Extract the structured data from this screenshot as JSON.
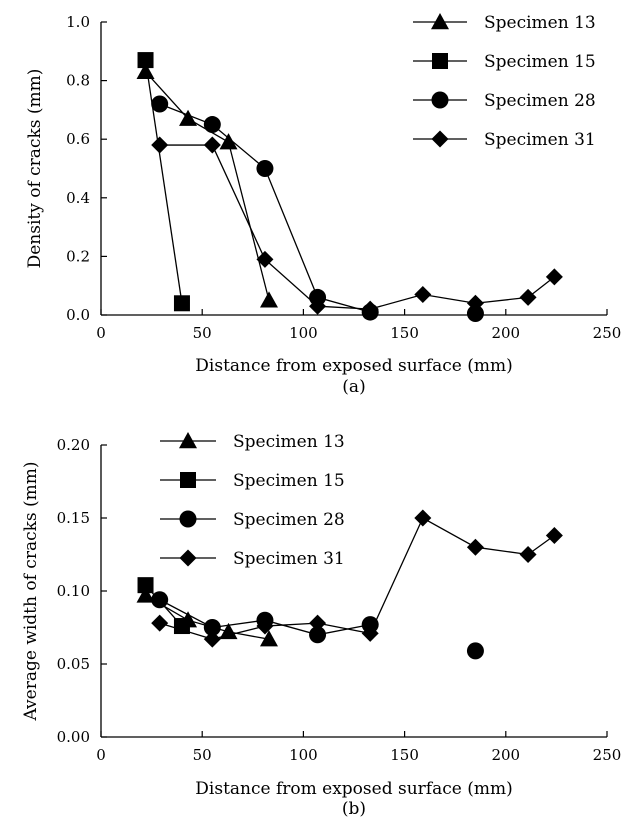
{
  "chart_data": [
    {
      "type": "line",
      "panel_label": "(a)",
      "xlabel": "Distance from exposed surface (mm)",
      "ylabel": "Density of cracks (mm)",
      "xlim": [
        0,
        250
      ],
      "ylim": [
        0,
        1.0
      ],
      "xticks": [
        "0",
        "50",
        "100",
        "150",
        "200",
        "250"
      ],
      "yticks": [
        "0.0",
        "0.2",
        "0.4",
        "0.6",
        "0.8",
        "1.0"
      ],
      "grid": false,
      "legend_position": "top-right",
      "series": [
        {
          "name": "Specimen 13",
          "marker": "triangle",
          "connected": true,
          "points": [
            [
              22,
              0.83
            ],
            [
              43,
              0.67
            ],
            [
              63,
              0.59
            ],
            [
              83,
              0.05
            ]
          ]
        },
        {
          "name": "Specimen 15",
          "marker": "square",
          "connected": true,
          "points": [
            [
              22,
              0.87
            ],
            [
              40,
              0.04
            ]
          ]
        },
        {
          "name": "Specimen 28",
          "marker": "circle",
          "connected": true,
          "segments": [
            [
              [
                29,
                0.72
              ],
              [
                55,
                0.65
              ],
              [
                81,
                0.5
              ],
              [
                107,
                0.06
              ],
              [
                133,
                0.01
              ]
            ]
          ],
          "isolated": [
            [
              185,
              0.005
            ]
          ]
        },
        {
          "name": "Specimen 31",
          "marker": "diamond",
          "connected": true,
          "points": [
            [
              29,
              0.58
            ],
            [
              55,
              0.58
            ],
            [
              81,
              0.19
            ],
            [
              107,
              0.03
            ],
            [
              133,
              0.02
            ],
            [
              159,
              0.07
            ],
            [
              185,
              0.04
            ],
            [
              211,
              0.06
            ],
            [
              224,
              0.13
            ]
          ]
        }
      ]
    },
    {
      "type": "line",
      "panel_label": "(b)",
      "xlabel": "Distance from exposed surface (mm)",
      "ylabel": "Average width of cracks (mm)",
      "xlim": [
        0,
        250
      ],
      "ylim": [
        0,
        0.2
      ],
      "xticks": [
        "0",
        "50",
        "100",
        "150",
        "200",
        "250"
      ],
      "yticks": [
        "0.00",
        "0.05",
        "0.10",
        "0.15",
        "0.20"
      ],
      "grid": false,
      "legend_position": "top-left",
      "series": [
        {
          "name": "Specimen 13",
          "marker": "triangle",
          "connected": true,
          "points": [
            [
              22,
              0.097
            ],
            [
              43,
              0.08
            ],
            [
              63,
              0.072
            ],
            [
              83,
              0.067
            ]
          ]
        },
        {
          "name": "Specimen 15",
          "marker": "square",
          "connected": true,
          "points": [
            [
              22,
              0.104
            ],
            [
              40,
              0.076
            ]
          ]
        },
        {
          "name": "Specimen 28",
          "marker": "circle",
          "connected": true,
          "segments": [
            [
              [
                29,
                0.094
              ],
              [
                55,
                0.075
              ],
              [
                81,
                0.08
              ],
              [
                107,
                0.07
              ],
              [
                133,
                0.077
              ]
            ]
          ],
          "isolated": [
            [
              185,
              0.059
            ]
          ]
        },
        {
          "name": "Specimen 31",
          "marker": "diamond",
          "connected": true,
          "points": [
            [
              29,
              0.078
            ],
            [
              55,
              0.067
            ],
            [
              81,
              0.076
            ],
            [
              107,
              0.078
            ],
            [
              133,
              0.071
            ],
            [
              159,
              0.15
            ],
            [
              185,
              0.13
            ],
            [
              211,
              0.125
            ],
            [
              224,
              0.138
            ]
          ]
        }
      ]
    }
  ]
}
